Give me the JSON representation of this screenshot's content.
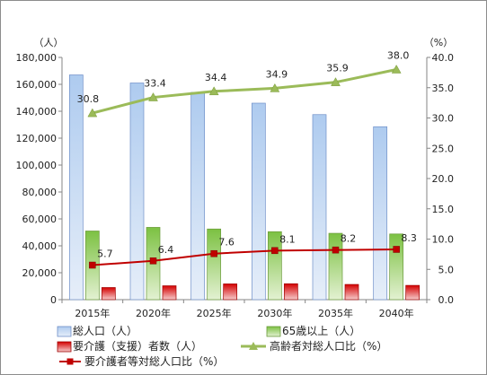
{
  "chart_data": {
    "type": "bar",
    "categories": [
      "2015年",
      "2020年",
      "2025年",
      "2030年",
      "2035年",
      "2040年"
    ],
    "y_left": {
      "unit": "（人）",
      "min": 0,
      "max": 180000,
      "step": 20000,
      "ticks": [
        "0",
        "20,000",
        "40,000",
        "60,000",
        "80,000",
        "100,000",
        "120,000",
        "140,000",
        "160,000",
        "180,000"
      ]
    },
    "y_right": {
      "unit": "（%）",
      "min": 0,
      "max": 40,
      "step": 5,
      "ticks": [
        "0.0",
        "5.0",
        "10.0",
        "15.0",
        "20.0",
        "25.0",
        "30.0",
        "35.0",
        "40.0"
      ]
    },
    "series": [
      {
        "name": "総人口（人）",
        "kind": "bar",
        "axis": "left",
        "color": "#9db9e4",
        "values": [
          167000,
          161000,
          154000,
          146000,
          137500,
          128500
        ]
      },
      {
        "name": "65歳以上（人）",
        "kind": "bar",
        "axis": "left",
        "color": "#8cc34a",
        "values": [
          51000,
          53700,
          52500,
          50500,
          49300,
          48800
        ]
      },
      {
        "name": "要介護（支援）者数（人）",
        "kind": "bar",
        "axis": "left",
        "color": "#e02020",
        "values": [
          9000,
          10300,
          11700,
          11800,
          11300,
          10600
        ]
      },
      {
        "name": "高齢者対総人口比（%）",
        "kind": "line",
        "axis": "right",
        "color": "#9bbb59",
        "marker": "triangle",
        "values": [
          30.8,
          33.4,
          34.4,
          34.9,
          35.9,
          38.0
        ],
        "labels": [
          "30.8",
          "33.4",
          "34.4",
          "34.9",
          "35.9",
          "38.0"
        ]
      },
      {
        "name": "要介護者等対総人口比（%）",
        "kind": "line",
        "axis": "right",
        "color": "#c00000",
        "marker": "square",
        "values": [
          5.7,
          6.4,
          7.6,
          8.1,
          8.2,
          8.3
        ],
        "labels": [
          "5.7",
          "6.4",
          "7.6",
          "8.1",
          "8.2",
          "8.3"
        ]
      }
    ],
    "grid": false,
    "legend_position": "bottom"
  }
}
